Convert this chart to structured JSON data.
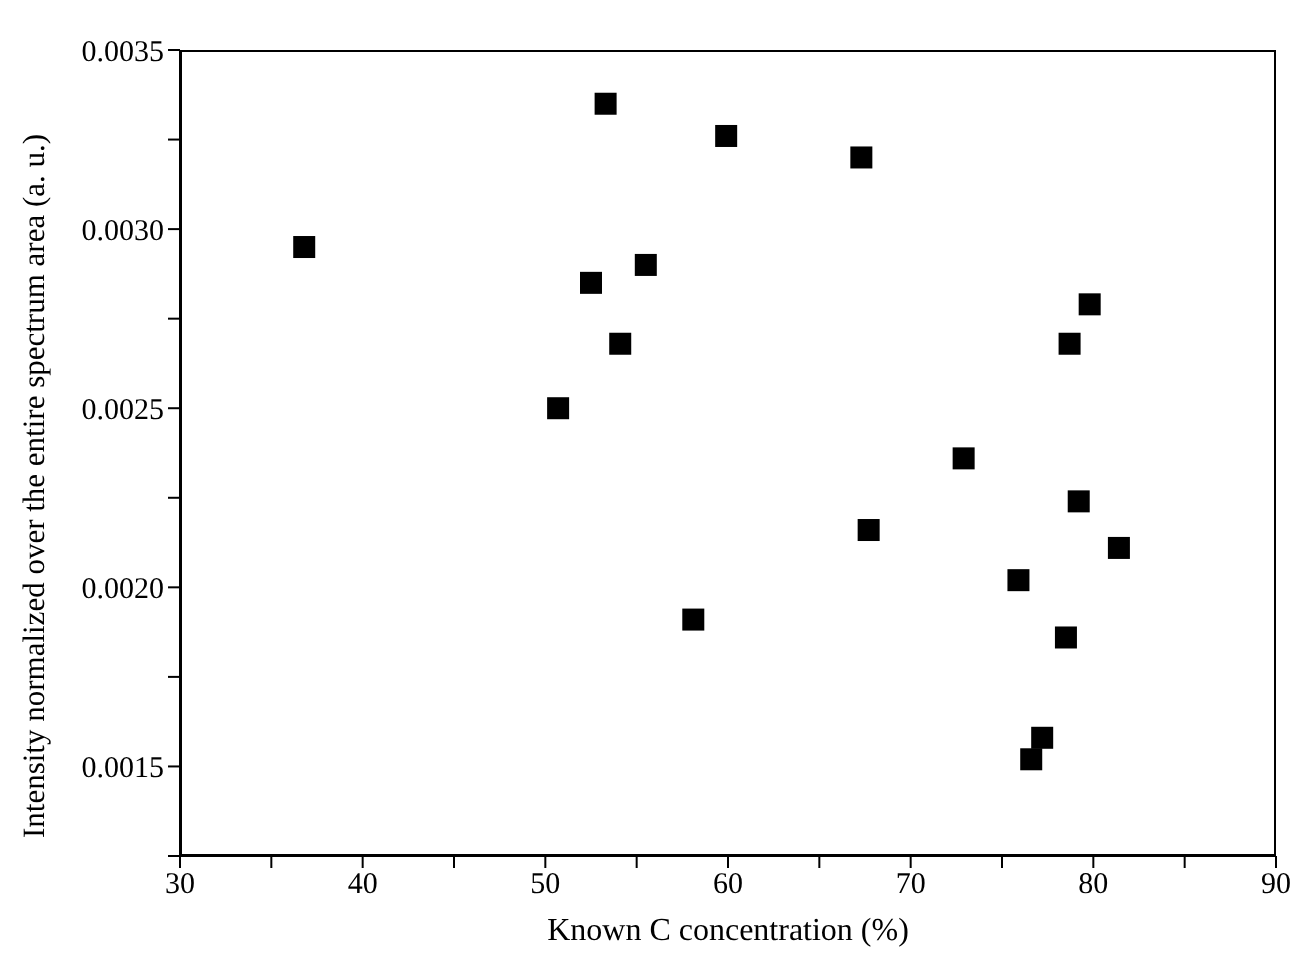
{
  "chart_data": {
    "type": "scatter",
    "xlabel": "Known C concentration (%)",
    "ylabel": "Intensity normalized over the entire spectrum area (a. u.)",
    "x": [
      36.8,
      53.3,
      55.5,
      52.5,
      54.1,
      50.7,
      59.9,
      67.3,
      79.8,
      78.7,
      72.9,
      79.2,
      67.7,
      81.4,
      75.9,
      58.1,
      78.5,
      77.2,
      76.6
    ],
    "series": [
      {
        "color": "#000000",
        "values": [
          0.00295,
          0.00335,
          0.0029,
          0.00285,
          0.00268,
          0.0025,
          0.00326,
          0.0032,
          0.00279,
          0.00268,
          0.00236,
          0.00224,
          0.00216,
          0.00211,
          0.00202,
          0.00191,
          0.00186,
          0.00158,
          0.00152
        ]
      }
    ],
    "xlim": [
      30,
      90
    ],
    "xticks": [
      30,
      {
        "value": 35,
        "label": null
      },
      40,
      {
        "value": 45,
        "label": null
      },
      50,
      {
        "value": 55,
        "label": null
      },
      60,
      {
        "value": 65,
        "label": null
      },
      70,
      {
        "value": 75,
        "label": null
      },
      80,
      {
        "value": 85,
        "label": null
      },
      90
    ],
    "ylim": [
      0.00125,
      0.0035
    ],
    "yticks": [
      {
        "value": 0.00125,
        "label": null
      },
      {
        "value": 0.0015,
        "label": "0.0015"
      },
      {
        "value": 0.00175,
        "label": null
      },
      {
        "value": 0.002,
        "label": "0.0020"
      },
      {
        "value": 0.00225,
        "label": null
      },
      {
        "value": 0.0025,
        "label": "0.0025"
      },
      {
        "value": 0.00275,
        "label": null
      },
      {
        "value": 0.003,
        "label": "0.0030"
      },
      {
        "value": 0.00325,
        "label": null
      },
      {
        "value": 0.0035,
        "label": "0.0035"
      }
    ],
    "grid": false,
    "legend": false,
    "marker": "square"
  }
}
